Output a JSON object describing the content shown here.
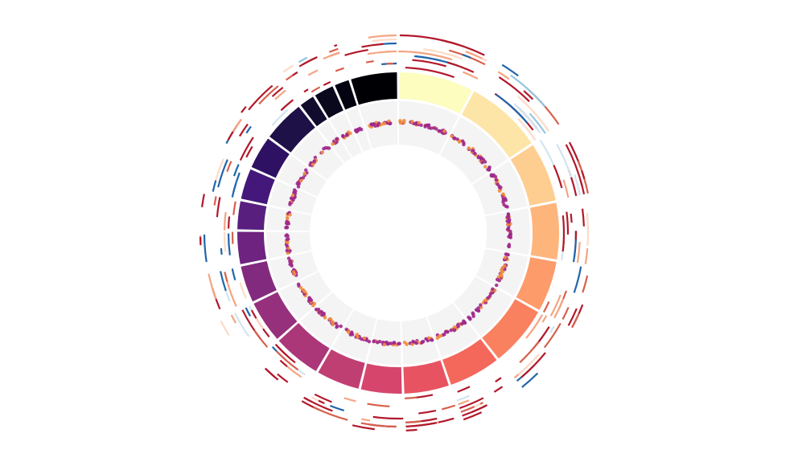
{
  "chart_data": {
    "type": "circos",
    "title": "",
    "ideogram": {
      "segment_count": 22,
      "span_degrees": [
        27.7,
        28.6,
        22.3,
        21.2,
        19.1,
        22.7,
        19.4,
        17.0,
        15.6,
        16.4,
        18.0,
        16.0,
        14.0,
        12.5,
        11.0,
        11.9,
        12.6,
        15.8,
        6.2,
        7.9,
        6.1,
        17.5
      ],
      "colors": [
        "#fcfdbf",
        "#fde5a7",
        "#fece91",
        "#feb57c",
        "#fd9b6b",
        "#fa815f",
        "#f4685c",
        "#e85362",
        "#d6456c",
        "#c03f73",
        "#ab3779",
        "#96307c",
        "#822a7e",
        "#6d237f",
        "#581f7f",
        "#43187a",
        "#2f1163",
        "#1d1147",
        "#110b2e",
        "#09081d",
        "#040311",
        "#000004"
      ]
    },
    "scatter_track": {
      "background": "#f4f4f4",
      "point_colors": [
        "#a0288c",
        "#f08c3c"
      ]
    },
    "outer_arc_tracks": {
      "palette": [
        "#b2182b",
        "#d6604d",
        "#f4a582",
        "#fddbc7",
        "#d1e5f0",
        "#92c5de",
        "#4393c3",
        "#2166ac"
      ]
    },
    "grid": false,
    "legend": "none"
  }
}
